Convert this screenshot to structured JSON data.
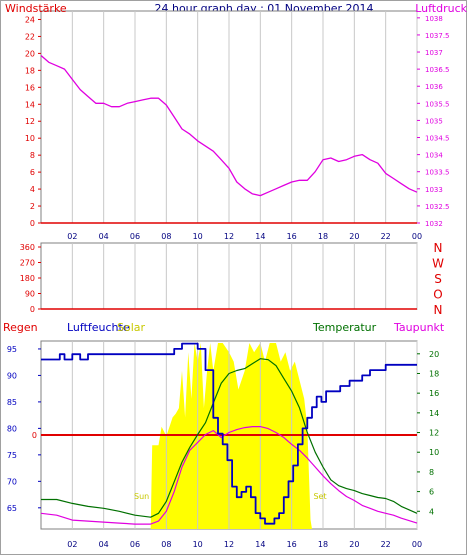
{
  "title": "24 hour graph day : 01 November 2014",
  "colors": {
    "red": "#e00000",
    "magenta": "#e000e0",
    "blue": "#0000c0",
    "green": "#007000",
    "yellow": "#ffff00",
    "solarText": "#c8c800",
    "grid": "#c8c8c8"
  },
  "x_tick_labels": [
    "02",
    "04",
    "06",
    "08",
    "10",
    "12",
    "14",
    "16",
    "18",
    "20",
    "22",
    "00"
  ],
  "chart_data": [
    {
      "type": "line",
      "name": "wind-pressure",
      "left_axis_label": "Windstärke",
      "right_axis_label": "Luftdruck",
      "left_ticks": [
        "0",
        "2",
        "4",
        "6",
        "8",
        "10",
        "12",
        "14",
        "16",
        "18",
        "20",
        "22",
        "24"
      ],
      "right_ticks": [
        "1032",
        "1032.5",
        "1033",
        "1033.5",
        "1034",
        "1034.5",
        "1035",
        "1035.5",
        "1036",
        "1036.5",
        "1037",
        "1037.5",
        "1038"
      ],
      "left_ylim": [
        0,
        25
      ],
      "right_ylim": [
        1032,
        1038.2
      ],
      "x_range_hours": [
        0,
        24
      ],
      "series": [
        {
          "name": "Luftdruck",
          "axis": "right",
          "x": [
            0.0,
            0.5,
            1.0,
            1.5,
            2.0,
            2.5,
            3.0,
            3.5,
            4.0,
            4.5,
            5.0,
            5.5,
            6.0,
            6.5,
            7.0,
            7.5,
            8.0,
            8.5,
            9.0,
            9.5,
            10.0,
            10.5,
            11.0,
            11.5,
            12.0,
            12.5,
            13.0,
            13.5,
            14.0,
            14.5,
            15.0,
            15.5,
            16.0,
            16.5,
            17.0,
            17.5,
            18.0,
            18.5,
            19.0,
            19.5,
            20.0,
            20.5,
            21.0,
            21.5,
            22.0,
            22.5,
            23.0,
            23.5,
            24.0
          ],
          "values": [
            1036.9,
            1036.7,
            1036.6,
            1036.5,
            1036.2,
            1035.9,
            1035.7,
            1035.5,
            1035.5,
            1035.4,
            1035.4,
            1035.5,
            1035.55,
            1035.6,
            1035.65,
            1035.65,
            1035.45,
            1035.1,
            1034.75,
            1034.6,
            1034.4,
            1034.25,
            1034.1,
            1033.85,
            1033.6,
            1033.2,
            1033.0,
            1032.85,
            1032.8,
            1032.9,
            1033.0,
            1033.1,
            1033.2,
            1033.25,
            1033.25,
            1033.5,
            1033.85,
            1033.9,
            1033.8,
            1033.85,
            1033.95,
            1034.0,
            1033.85,
            1033.75,
            1033.45,
            1033.3,
            1033.15,
            1033.0,
            1032.9
          ]
        }
      ]
    },
    {
      "type": "line",
      "name": "wind-direction",
      "left_ticks": [
        "0",
        "90",
        "180",
        "270",
        "360"
      ],
      "right_labels": [
        "N",
        "W",
        "S",
        "O",
        "N"
      ],
      "ylim": [
        0,
        360
      ],
      "series": [
        {
          "name": "Windrichtung",
          "x": [
            0,
            24
          ],
          "values": [
            0,
            0
          ]
        }
      ]
    },
    {
      "type": "line",
      "name": "humidity-temperature",
      "labels": {
        "regen": "Regen",
        "luftfeuchte": "Luftfeuchte",
        "solar": "Solar",
        "temperatur": "Temperatur",
        "taupunkt": "Taupunkt",
        "sunrise": "Sun",
        "sunset": "Set",
        "rain_axis_zero": "0"
      },
      "left_ticks": [
        "65",
        "70",
        "75",
        "80",
        "85",
        "90",
        "95"
      ],
      "right_ticks": [
        "4",
        "6",
        "8",
        "10",
        "12",
        "14",
        "16",
        "18",
        "20"
      ],
      "left_ylim": [
        61,
        96.5
      ],
      "right_ylim": [
        2.2,
        21.3
      ],
      "sunrise_hour": 7.1,
      "sunset_hour": 17.2,
      "series": [
        {
          "name": "Luftfeuchte",
          "axis": "left",
          "x": [
            0.0,
            1.0,
            1.2,
            1.5,
            2.0,
            2.5,
            3.0,
            4.0,
            5.0,
            6.0,
            7.0,
            7.5,
            8.0,
            8.5,
            9.0,
            9.5,
            10.0,
            10.5,
            11.0,
            11.3,
            11.6,
            11.9,
            12.2,
            12.5,
            12.8,
            13.1,
            13.4,
            13.7,
            14.0,
            14.3,
            14.6,
            14.9,
            15.2,
            15.5,
            15.8,
            16.1,
            16.4,
            16.7,
            17.0,
            17.3,
            17.6,
            17.9,
            18.2,
            18.5,
            18.8,
            19.1,
            19.4,
            19.7,
            20.0,
            20.5,
            21.0,
            21.5,
            22.0,
            22.5,
            23.0,
            24.0
          ],
          "values": [
            93,
            93,
            94,
            93,
            94,
            93,
            94,
            94,
            94,
            94,
            94,
            94,
            94,
            95,
            96,
            96,
            95,
            91,
            82,
            79,
            77,
            74,
            69,
            67,
            68,
            69,
            67,
            64,
            63,
            62,
            62,
            63,
            64,
            67,
            70,
            73,
            77,
            80,
            82,
            84,
            86,
            85,
            87,
            87,
            87,
            88,
            88,
            89,
            89,
            90,
            91,
            91,
            92,
            92,
            92,
            92
          ]
        },
        {
          "name": "Temperatur",
          "axis": "right",
          "x": [
            0.0,
            1.0,
            2.0,
            3.0,
            4.0,
            5.0,
            6.0,
            7.0,
            7.5,
            8.0,
            8.5,
            9.0,
            9.5,
            10.0,
            10.5,
            11.0,
            11.5,
            12.0,
            12.5,
            13.0,
            13.5,
            14.0,
            14.5,
            15.0,
            15.5,
            16.0,
            16.5,
            17.0,
            17.5,
            18.0,
            18.5,
            19.0,
            19.5,
            20.0,
            20.5,
            21.0,
            21.5,
            22.0,
            22.5,
            23.0,
            24.0
          ],
          "values": [
            5.2,
            5.2,
            4.8,
            4.5,
            4.3,
            4.0,
            3.6,
            3.4,
            3.8,
            5.0,
            7.0,
            9.0,
            10.5,
            11.8,
            13.0,
            15.0,
            17.0,
            18.0,
            18.3,
            18.5,
            19.0,
            19.5,
            19.4,
            18.8,
            17.5,
            16.2,
            14.5,
            12.0,
            10.0,
            8.5,
            7.2,
            6.6,
            6.3,
            6.1,
            5.8,
            5.6,
            5.4,
            5.3,
            5.0,
            4.5,
            3.8
          ]
        },
        {
          "name": "Taupunkt",
          "axis": "right",
          "x": [
            0.0,
            1.0,
            2.0,
            3.0,
            4.0,
            5.0,
            6.0,
            7.0,
            7.5,
            8.0,
            8.5,
            9.0,
            9.5,
            10.0,
            10.5,
            11.0,
            11.5,
            12.0,
            12.5,
            13.0,
            13.5,
            14.0,
            14.5,
            15.0,
            15.5,
            16.0,
            16.5,
            17.0,
            17.5,
            18.0,
            18.5,
            19.0,
            19.5,
            20.0,
            20.5,
            21.0,
            21.5,
            22.0,
            22.5,
            23.0,
            24.0
          ],
          "values": [
            3.8,
            3.6,
            3.1,
            3.0,
            2.9,
            2.8,
            2.7,
            2.7,
            3.0,
            4.0,
            6.0,
            8.5,
            10.2,
            11.0,
            11.8,
            12.2,
            11.5,
            12.0,
            12.3,
            12.5,
            12.6,
            12.6,
            12.4,
            12.0,
            11.5,
            10.8,
            10.2,
            9.4,
            8.5,
            7.6,
            6.8,
            6.1,
            5.5,
            5.1,
            4.6,
            4.3,
            4.0,
            3.8,
            3.6,
            3.3,
            2.8
          ]
        },
        {
          "name": "Solar",
          "axis": "fill",
          "x": [
            0.0,
            7.0,
            7.1,
            7.5,
            7.7,
            8.0,
            8.2,
            8.4,
            8.6,
            8.8,
            9.0,
            9.2,
            9.4,
            9.6,
            9.8,
            10.0,
            10.2,
            10.4,
            10.6,
            10.8,
            11.0,
            11.3,
            11.6,
            12.0,
            12.3,
            12.6,
            13.0,
            13.3,
            13.6,
            14.0,
            14.3,
            14.6,
            15.0,
            15.3,
            15.6,
            15.9,
            16.2,
            16.5,
            16.8,
            17.0,
            17.1,
            17.2,
            17.3,
            24.0
          ],
          "values": [
            0,
            0,
            0.45,
            0.45,
            0.55,
            0.5,
            0.55,
            0.6,
            0.62,
            0.65,
            0.85,
            0.6,
            0.95,
            0.7,
            1.0,
            0.9,
            1.0,
            0.65,
            0.85,
            1.0,
            0.85,
            1.0,
            1.0,
            0.95,
            0.9,
            0.75,
            0.85,
            1.0,
            0.95,
            1.0,
            0.9,
            1.0,
            1.0,
            0.9,
            0.95,
            0.85,
            0.9,
            0.8,
            0.7,
            0.55,
            0.3,
            0.05,
            0,
            0
          ]
        },
        {
          "name": "Regen",
          "axis": "rain",
          "x": [
            0,
            24
          ],
          "values": [
            0,
            0
          ]
        }
      ]
    }
  ]
}
